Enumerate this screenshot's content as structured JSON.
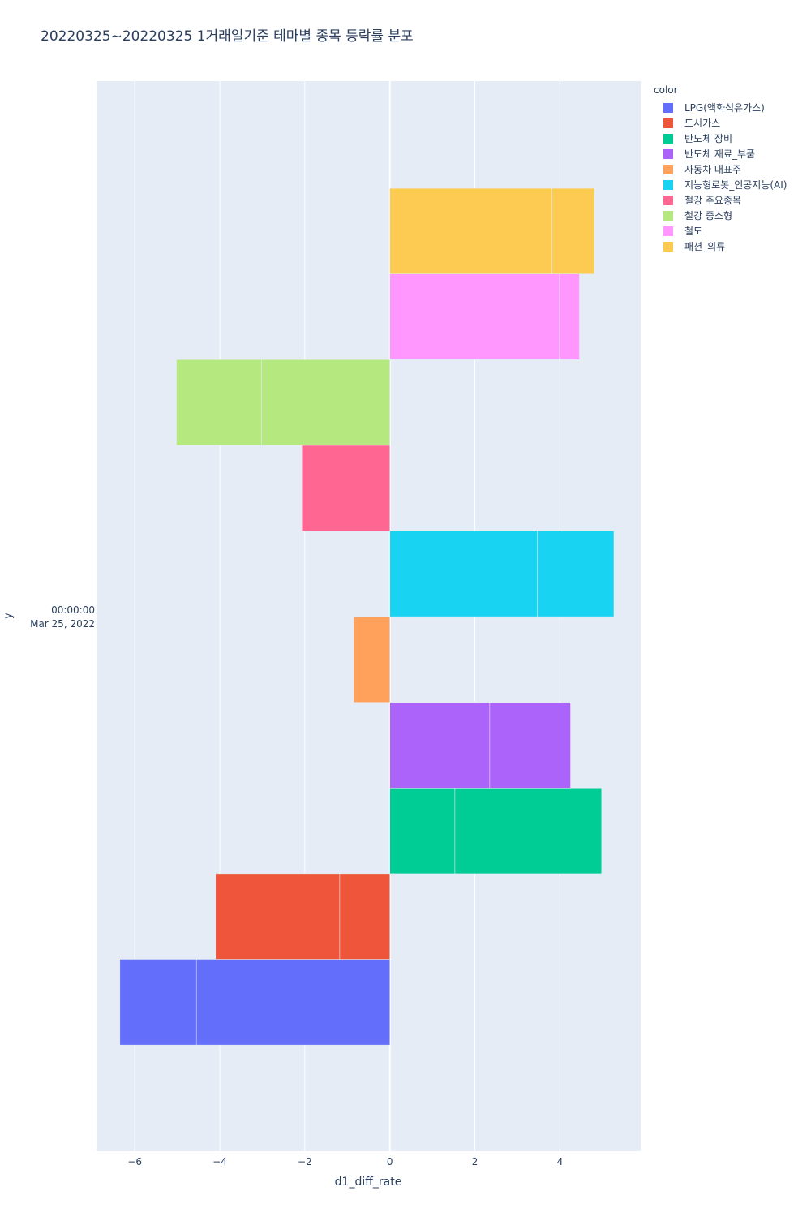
{
  "chart_data": {
    "type": "bar",
    "orientation": "horizontal",
    "barmode": "group",
    "title": "20220325~20220325 1거래일기준 테마별 종목 등락률 분포",
    "xlabel": "d1_diff_rate",
    "ylabel": "y",
    "category_label": [
      "00:00:00",
      "Mar 25, 2022"
    ],
    "xlim": [
      -6.9,
      5.9
    ],
    "x_ticks": [
      -6,
      -4,
      -2,
      0,
      2,
      4
    ],
    "x_tick_labels": [
      "−6",
      "−4",
      "−2",
      "0",
      "2",
      "4"
    ],
    "grid": true,
    "legend_title": "color",
    "legend_position": "top-right",
    "series": [
      {
        "name": "LPG(액화석유가스)",
        "color": "#636efa",
        "segments": [
          -4.55,
          -1.8
        ]
      },
      {
        "name": "도시가스",
        "color": "#ef553b",
        "segments": [
          -1.18,
          -2.92
        ]
      },
      {
        "name": "반도체 장비",
        "color": "#00cc96",
        "segments": [
          1.53,
          3.45
        ]
      },
      {
        "name": "반도체 재료_부품",
        "color": "#ab63fa",
        "segments": [
          2.35,
          1.9
        ]
      },
      {
        "name": "자동차 대표주",
        "color": "#ffa15a",
        "segments": [
          -0.85
        ]
      },
      {
        "name": "지능형로봇_인공지능(AI)",
        "color": "#19d3f3",
        "segments": [
          3.47,
          1.8
        ]
      },
      {
        "name": "철강 주요종목",
        "color": "#ff6692",
        "segments": [
          -2.07
        ]
      },
      {
        "name": "철강 중소형",
        "color": "#b6e880",
        "segments": [
          -3.02,
          -2.0
        ]
      },
      {
        "name": "철도",
        "color": "#ff97ff",
        "segments": [
          3.99,
          0.47
        ]
      },
      {
        "name": "패션_의류",
        "color": "#fecb52",
        "segments": [
          3.81,
          1.0
        ]
      }
    ]
  }
}
